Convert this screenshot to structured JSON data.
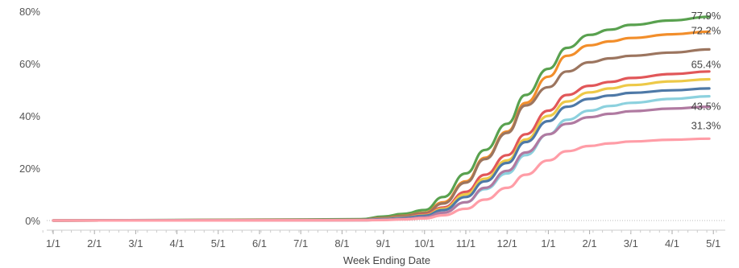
{
  "chart_data": {
    "type": "line",
    "title": "",
    "xlabel": "Week Ending Date",
    "ylabel": "",
    "x_ticks": [
      "1/1",
      "2/1",
      "3/1",
      "4/1",
      "5/1",
      "6/1",
      "7/1",
      "8/1",
      "9/1",
      "10/1",
      "11/1",
      "12/1",
      "1/1",
      "2/1",
      "3/1",
      "4/1",
      "5/1"
    ],
    "x_range": [
      "1/1",
      "5/1 (following year)"
    ],
    "y_ticks": [
      "0%",
      "20%",
      "40%",
      "60%",
      "80%"
    ],
    "ylim": [
      0,
      80
    ],
    "y_unit": "%",
    "grid": false,
    "zero_line": "dotted",
    "x": [
      "1/1",
      "8/15",
      "9/1",
      "9/15",
      "10/1",
      "10/15",
      "11/1",
      "11/15",
      "12/1",
      "12/15",
      "1/1",
      "1/15",
      "2/1",
      "2/15",
      "3/1",
      "4/1",
      "4/28"
    ],
    "series": [
      {
        "color": "#59a14f",
        "values": [
          0,
          0.5,
          1.5,
          2.5,
          4,
          9,
          18,
          27,
          37,
          48,
          58,
          66,
          71,
          73,
          74.8,
          76.5,
          77.9
        ],
        "end_label": "77.9%"
      },
      {
        "color": "#f28e2b",
        "values": [
          0,
          0.3,
          1.0,
          1.8,
          3,
          7,
          15,
          24,
          34,
          45,
          55,
          63,
          67,
          68.5,
          69.8,
          71.2,
          72.2
        ],
        "end_label": "72.2%"
      },
      {
        "color": "#9c755f",
        "values": [
          0,
          0.3,
          1.0,
          1.7,
          2.8,
          6.5,
          14.5,
          23.5,
          33.5,
          44,
          51,
          57,
          60.5,
          62,
          63,
          64.2,
          65.4
        ],
        "end_label": "65.4%"
      },
      {
        "color": "#e15759",
        "values": [
          0,
          0.2,
          0.6,
          1.2,
          2.3,
          5,
          11,
          17.5,
          25,
          33,
          42,
          48,
          51.5,
          53,
          54.5,
          56,
          57
        ]
      },
      {
        "color": "#edc948",
        "values": [
          0,
          0.2,
          0.6,
          1.1,
          2.0,
          4.5,
          10,
          16,
          23,
          31,
          40,
          45.5,
          49,
          50.5,
          51.8,
          53.2,
          54
        ]
      },
      {
        "color": "#4e79a7",
        "values": [
          0,
          0.2,
          0.5,
          1.0,
          1.8,
          4,
          9,
          15,
          22,
          30,
          38,
          43.5,
          46.5,
          47.8,
          48.8,
          49.8,
          50.5
        ]
      },
      {
        "color": "#8cd1de",
        "values": [
          0,
          0.1,
          0.3,
          0.6,
          1.2,
          3,
          7,
          12,
          18,
          25,
          33,
          38.5,
          42,
          43.8,
          45,
          46.5,
          47.5
        ]
      },
      {
        "color": "#b07aa1",
        "values": [
          0,
          0.1,
          0.3,
          0.6,
          1.2,
          3,
          7,
          12.5,
          19,
          26,
          33,
          37,
          39.5,
          40.8,
          41.8,
          42.8,
          43.5
        ],
        "end_label": "43.5%"
      },
      {
        "color": "#ff9da7",
        "values": [
          0,
          0.1,
          0.2,
          0.4,
          0.8,
          2,
          4.5,
          8,
          12.5,
          17.5,
          23,
          26.5,
          28.5,
          29.5,
          30.2,
          30.9,
          31.3
        ],
        "end_label": "31.3%"
      }
    ]
  }
}
